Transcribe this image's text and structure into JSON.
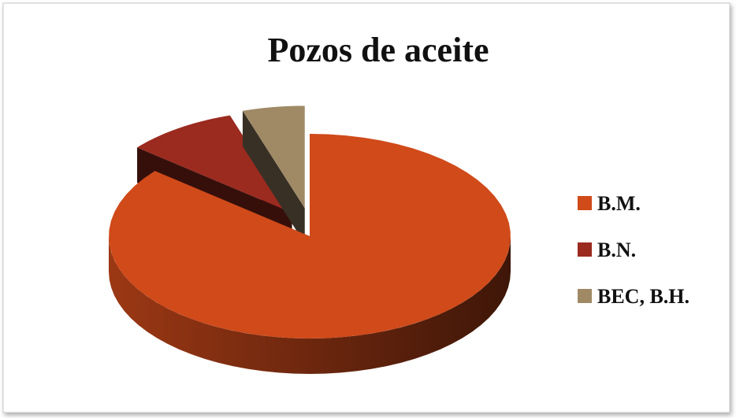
{
  "chart_data": {
    "type": "pie",
    "title": "Pozos de aceite",
    "categories": [
      "B.M.",
      "B.N.",
      "BEC, B.H."
    ],
    "values": [
      86,
      9,
      5
    ],
    "colors": [
      "#d04a1a",
      "#9b2a1f",
      "#a08a66"
    ],
    "legend": "right"
  }
}
